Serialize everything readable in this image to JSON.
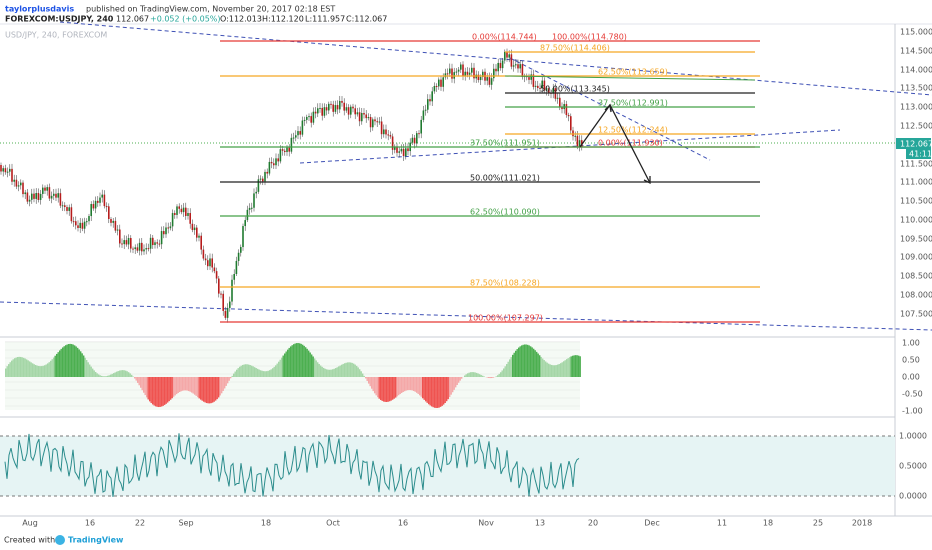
{
  "header": {
    "author": "taylorplusdavis",
    "published": "published on TradingView.com, November 20, 2017 02:18 EST",
    "symbol": "FOREXCOM:USDJPY, 240",
    "last": "112.067",
    "change": "+0.052 (+0.05%)",
    "open": "O:112.013",
    "high": "H:112.120",
    "low": "L:111.957",
    "close": "C:112.067"
  },
  "chart": {
    "legend": "USD/JPY, 240, FOREXCOM",
    "fib_levels": [
      "100.00%(114.780)",
      "87.50%(114.406)",
      "62.50%(113.659)",
      "50.00%(113.345)",
      "37.50%(112.991)",
      "12.50%(112.244)",
      "0.00%(111.930)",
      "0.00%(114.744)",
      "37.50%(111.951)",
      "50.00%(111.021)",
      "62.50%(110.090)",
      "87.50%(108.228)",
      "100.00%(107.297)"
    ],
    "price_axis": [
      "115.000",
      "114.500",
      "114.000",
      "113.500",
      "113.000",
      "112.500",
      "111.500",
      "111.000",
      "110.500",
      "110.000",
      "109.500",
      "109.000",
      "108.500",
      "108.000",
      "107.500"
    ],
    "price_tag": "112.067",
    "countdown": "41:11",
    "osc_axis": [
      "1.00",
      "0.50",
      "0.00",
      "-0.50",
      "-1.00"
    ],
    "rsi_axis": [
      "1.0000",
      "0.5000",
      "0.0000"
    ],
    "time_axis": [
      "Aug",
      "16",
      "22",
      "Sep",
      "18",
      "Oct",
      "16",
      "Nov",
      "13",
      "20",
      "Dec",
      "11",
      "18",
      "25",
      "2018"
    ]
  },
  "footer": {
    "created": "Created with",
    "brand": "TradingView"
  }
}
